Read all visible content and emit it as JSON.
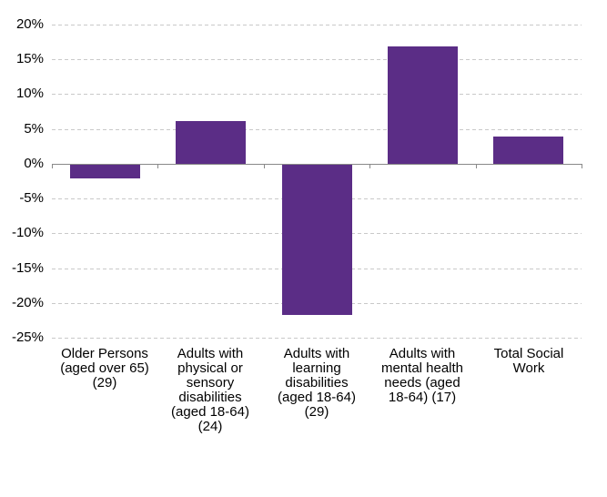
{
  "chart_data": {
    "type": "bar",
    "title": "",
    "xlabel": "",
    "ylabel": "",
    "categories": [
      "Older Persons (aged over 65) (29)",
      "Adults with physical or sensory disabilities (aged 18-64) (24)",
      "Adults with learning disabilities (aged 18-64) (29)",
      "Adults with mental health needs (aged 18-64) (17)",
      "Total Social Work"
    ],
    "category_label_lines": [
      [
        "Older Persons",
        "(aged over 65)",
        "(29)"
      ],
      [
        "Adults with",
        "physical or",
        "sensory",
        "disabilities",
        "(aged 18-64)",
        "(24)"
      ],
      [
        "Adults with",
        "learning",
        "disabilities",
        "(aged 18-64)",
        "(29)"
      ],
      [
        "Adults with",
        "mental health",
        "needs (aged",
        "18-64) (17)"
      ],
      [
        "Total Social",
        "Work"
      ]
    ],
    "values": [
      -2.0,
      6.1,
      -21.6,
      16.9,
      3.9
    ],
    "ylim": [
      -25,
      20
    ],
    "y_ticks": [
      20,
      15,
      10,
      5,
      0,
      -5,
      -10,
      -15,
      -20,
      -25
    ],
    "y_tick_labels": [
      "20%",
      "15%",
      "10%",
      "5%",
      "0%",
      "-5%",
      "-10%",
      "-15%",
      "-20%",
      "-25%"
    ],
    "grid": "horizontal-dashed",
    "legend": "none",
    "colors": {
      "bar": "#5b2d86",
      "axis": "#898989",
      "gridline": "#c9c9c9",
      "text": "#000000",
      "background": "#ffffff"
    }
  }
}
